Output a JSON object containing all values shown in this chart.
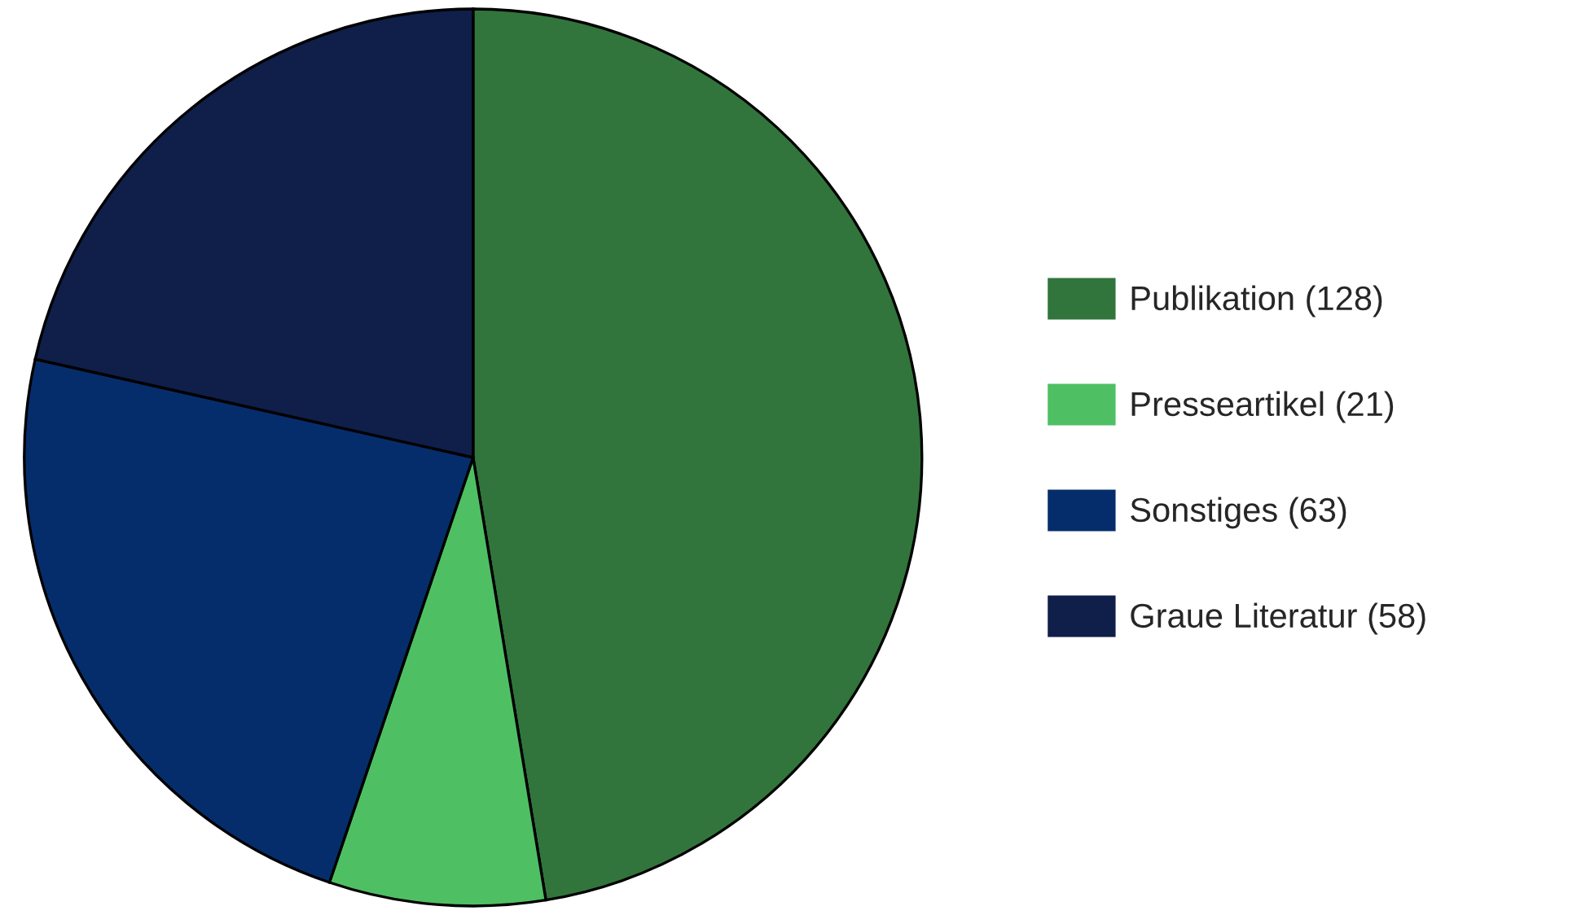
{
  "chart_data": {
    "type": "pie",
    "categories": [
      "Publikation (128)",
      "Presseartikel (21)",
      "Sonstiges (63)",
      "Graue Literatur (58)"
    ],
    "values": [
      128,
      21,
      63,
      58
    ],
    "colors": [
      "#31753c",
      "#4fbf63",
      "#062d6b",
      "#0f1f4a"
    ],
    "legend": "right"
  }
}
